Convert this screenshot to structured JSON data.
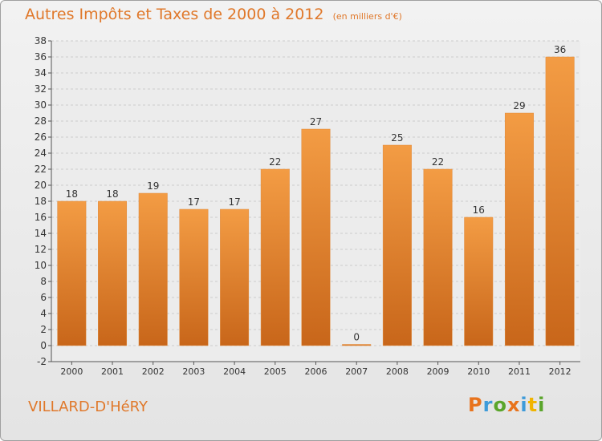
{
  "header": {
    "title": "Autres Impôts et Taxes de 2000 à 2012",
    "subtitle": "(en milliers d'€)"
  },
  "footer": {
    "commune": "VILLARD-D'HéRY",
    "logo": [
      "P",
      "r",
      "o",
      "x",
      "i",
      "t",
      "i"
    ]
  },
  "colors": {
    "bar": "#f39c44",
    "bar_dark": "#c8661a",
    "accent": "#e0782a",
    "logo": [
      "#e8731c",
      "#3e9bd9",
      "#5aa52b",
      "#e8731c",
      "#3e9bd9",
      "#f0b400",
      "#5aa52b"
    ]
  },
  "chart_data": {
    "type": "bar",
    "categories": [
      "2000",
      "2001",
      "2002",
      "2003",
      "2004",
      "2005",
      "2006",
      "2007",
      "2008",
      "2009",
      "2010",
      "2011",
      "2012"
    ],
    "values": [
      18,
      18,
      19,
      17,
      17,
      22,
      27,
      0,
      25,
      22,
      16,
      29,
      36
    ],
    "ylim": [
      -2,
      38
    ],
    "yticks": [
      -2,
      0,
      2,
      4,
      6,
      8,
      10,
      12,
      14,
      16,
      18,
      20,
      22,
      24,
      26,
      28,
      30,
      32,
      34,
      36,
      38
    ],
    "grid": true,
    "legend": "none"
  }
}
